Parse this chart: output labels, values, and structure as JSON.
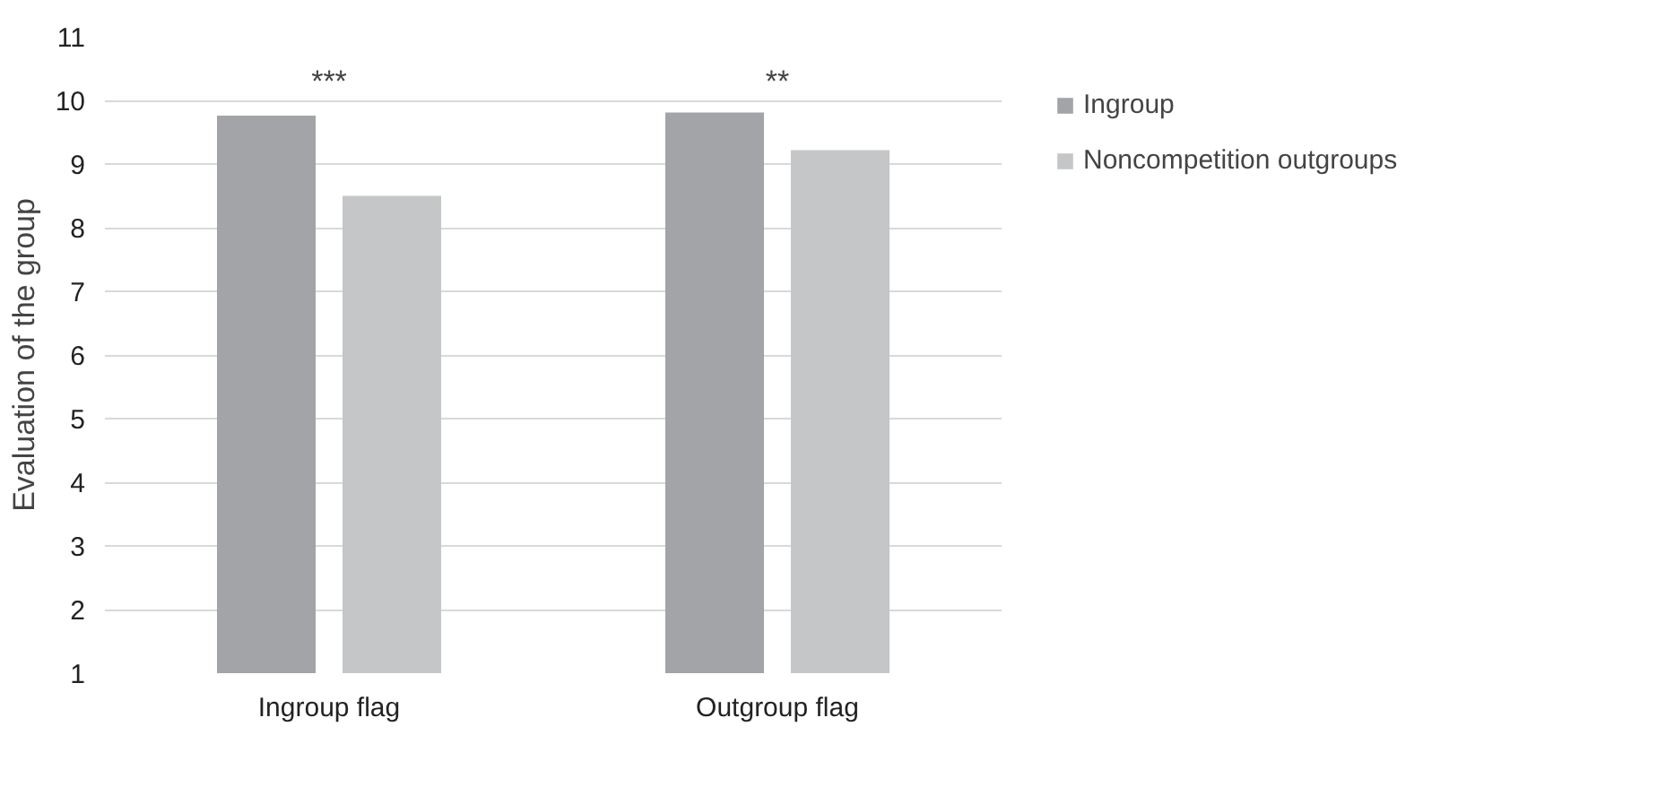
{
  "chart_data": {
    "type": "bar",
    "ylabel": "Evaluation of the group",
    "categories": [
      "Ingroup flag",
      "Outgroup flag"
    ],
    "series": [
      {
        "name": "Ingroup",
        "color": "#a3a4a8",
        "values": [
          9.76,
          9.81
        ]
      },
      {
        "name": "Noncompetition outgroups",
        "color": "#c5c6c8",
        "values": [
          8.5,
          9.22
        ]
      }
    ],
    "ylim": [
      1,
      11
    ],
    "yticks": [
      1,
      2,
      3,
      4,
      5,
      6,
      7,
      8,
      9,
      10,
      11
    ],
    "grid": "y",
    "legend": "right",
    "annotations": [
      "***",
      "**"
    ]
  }
}
